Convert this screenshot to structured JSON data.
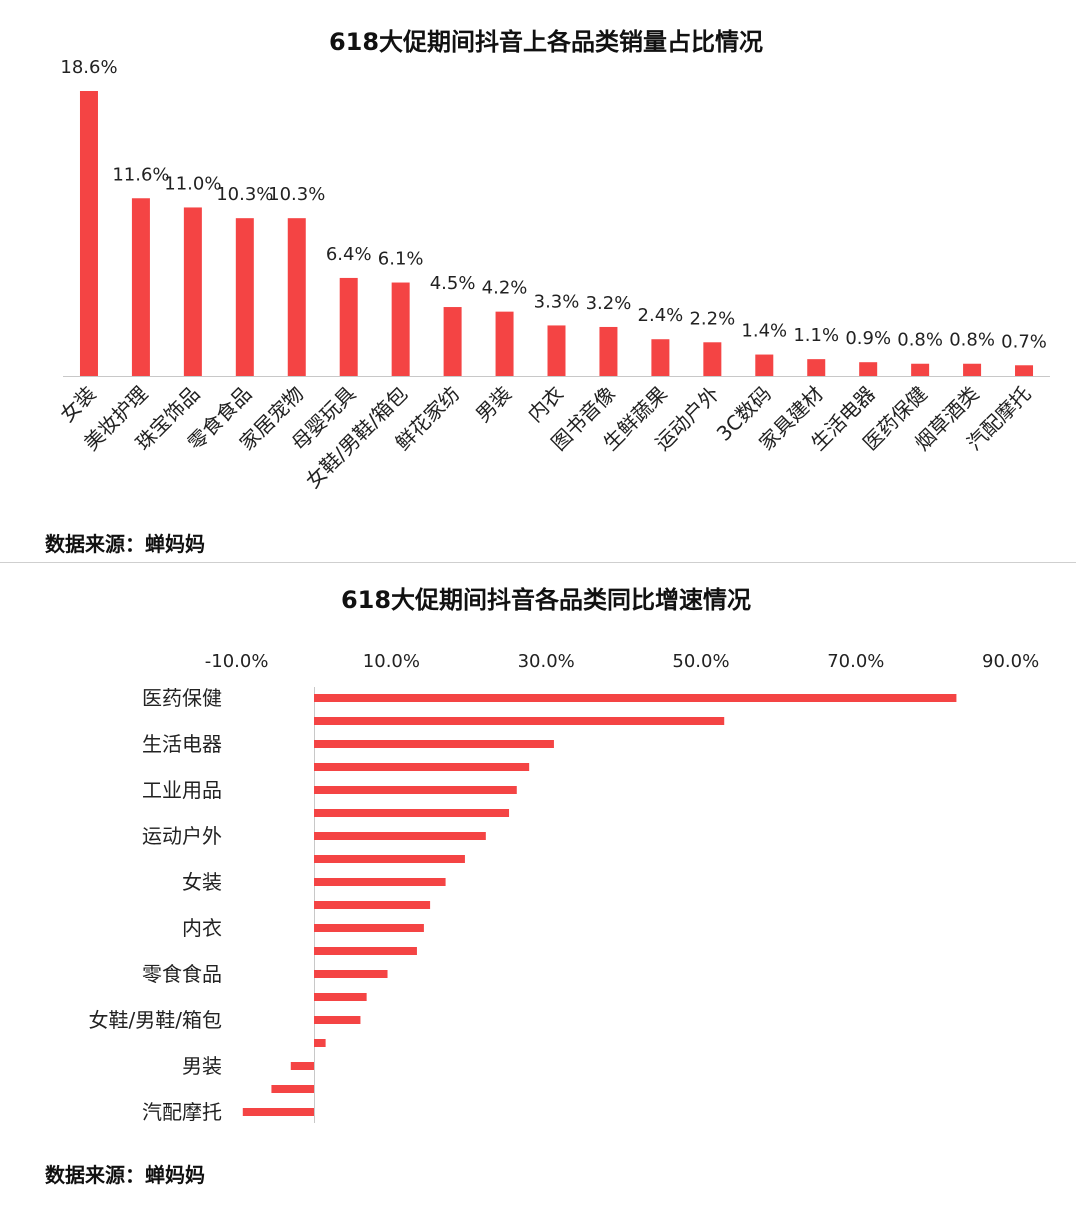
{
  "source_label": "数据来源：蝉妈妈",
  "bar_color": "#f44444",
  "chart_data": [
    {
      "type": "bar",
      "title": "618大促期间抖音上各品类销量占比情况",
      "categories": [
        "女装",
        "美妆护理",
        "珠宝饰品",
        "零食食品",
        "家居宠物",
        "母婴玩具",
        "女鞋/男鞋/箱包",
        "鲜花家纺",
        "男装",
        "内衣",
        "图书音像",
        "生鲜蔬果",
        "运动户外",
        "3C数码",
        "家具建材",
        "生活电器",
        "医药保健",
        "烟草酒类",
        "汽配摩托"
      ],
      "values": [
        18.6,
        11.6,
        11.0,
        10.3,
        10.3,
        6.4,
        6.1,
        4.5,
        4.2,
        3.3,
        3.2,
        2.4,
        2.2,
        1.4,
        1.1,
        0.9,
        0.8,
        0.8,
        0.7
      ],
      "data_labels": [
        "18.6%",
        "11.6%",
        "11.0%",
        "10.3%",
        "10.3%",
        "6.4%",
        "6.1%",
        "4.5%",
        "4.2%",
        "3.3%",
        "3.2%",
        "2.4%",
        "2.2%",
        "1.4%",
        "1.1%",
        "0.9%",
        "0.8%",
        "0.8%",
        "0.7%"
      ],
      "ylim": [
        0,
        20
      ],
      "grid": false
    },
    {
      "type": "bar",
      "orientation": "horizontal",
      "title": "618大促期间抖音各品类同比增速情况",
      "shown_labels": [
        "医药保健",
        "生活电器",
        "工业用品",
        "运动户外",
        "女装",
        "内衣",
        "零食食品",
        "女鞋/男鞋/箱包",
        "男装",
        "汽配摩托"
      ],
      "values": [
        83.0,
        53.0,
        31.0,
        27.8,
        26.2,
        25.2,
        22.2,
        19.5,
        17.0,
        15.0,
        14.2,
        13.3,
        9.5,
        6.8,
        6.0,
        1.5,
        -3.0,
        -5.5,
        -9.2
      ],
      "x_ticks": [
        "-10.0%",
        "10.0%",
        "30.0%",
        "50.0%",
        "70.0%",
        "90.0%"
      ],
      "xlim": [
        -10,
        90
      ],
      "grid": false
    }
  ]
}
